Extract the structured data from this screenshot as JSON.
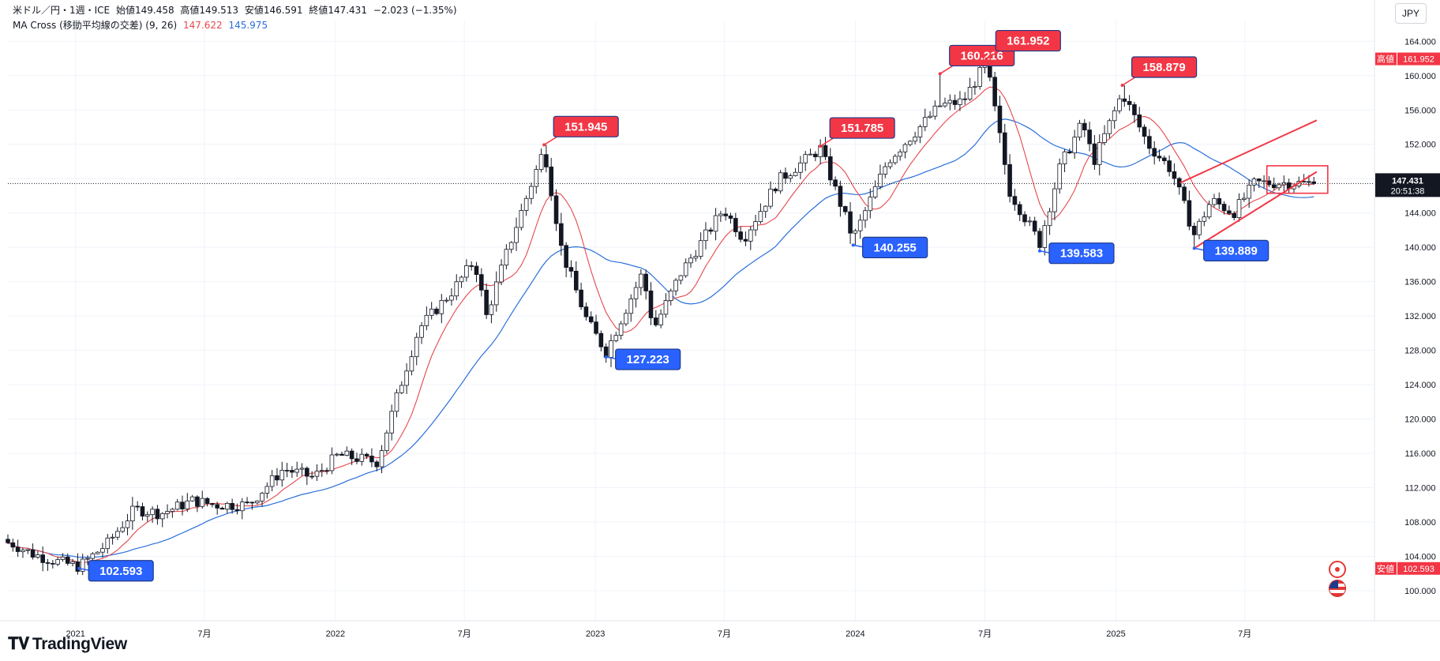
{
  "legend": {
    "title": "米ドル／円・1週・ICE",
    "open": "始値149.458",
    "high": "高値149.513",
    "low": "安値146.591",
    "close": "終値147.431",
    "change": "−2.023 (−1.35%)",
    "ma_title": "MA Cross (移動平均線の交差) (9, 26)",
    "ma_fast": "147.622",
    "ma_slow": "145.975"
  },
  "currency_button": "JPY",
  "brand": "TradingView",
  "colors": {
    "up": "#ffffff",
    "down": "#131722",
    "ma_fast": "#e5484d",
    "ma_slow": "#2a6fdb",
    "high_label": "#f23645",
    "low_label": "#2962ff",
    "trendline": "#f23645"
  },
  "chart_data": {
    "type": "candlestick",
    "title": "米ドル／円・1週・ICE",
    "ylim": [
      96.5,
      165.5
    ],
    "y_ticks": [
      "164.000",
      "160.000",
      "156.000",
      "152.000",
      "148.000",
      "144.000",
      "140.000",
      "136.000",
      "132.000",
      "128.000",
      "124.000",
      "120.000",
      "116.000",
      "112.000",
      "108.000",
      "104.000",
      "100.000"
    ],
    "x_ticks": [
      {
        "label": "2021",
        "date": "2021-01-01"
      },
      {
        "label": "7月",
        "date": "2021-07-01"
      },
      {
        "label": "2022",
        "date": "2022-01-01"
      },
      {
        "label": "7月",
        "date": "2022-07-01"
      },
      {
        "label": "2023",
        "date": "2023-01-01"
      },
      {
        "label": "7月",
        "date": "2023-07-01"
      },
      {
        "label": "2024",
        "date": "2024-01-01"
      },
      {
        "label": "7月",
        "date": "2024-07-01"
      },
      {
        "label": "2025",
        "date": "2025-01-01"
      },
      {
        "label": "7月",
        "date": "2025-07-01"
      }
    ],
    "x_range": [
      "2020-09-28",
      "2025-12-29"
    ],
    "close_path": [
      {
        "date": "2020-10-01",
        "close": 105.6
      },
      {
        "date": "2020-11-01",
        "close": 104.3
      },
      {
        "date": "2020-12-01",
        "close": 103.5
      },
      {
        "date": "2021-01-06",
        "close": 102.8
      },
      {
        "date": "2021-02-15",
        "close": 105.5
      },
      {
        "date": "2021-03-25",
        "close": 109.5
      },
      {
        "date": "2021-05-01",
        "close": 109.0
      },
      {
        "date": "2021-06-15",
        "close": 110.5
      },
      {
        "date": "2021-07-15",
        "close": 110.0
      },
      {
        "date": "2021-09-01",
        "close": 110.0
      },
      {
        "date": "2021-10-20",
        "close": 114.2
      },
      {
        "date": "2021-12-01",
        "close": 113.2
      },
      {
        "date": "2022-01-05",
        "close": 115.8
      },
      {
        "date": "2022-03-01",
        "close": 115.0
      },
      {
        "date": "2022-03-28",
        "close": 122.5
      },
      {
        "date": "2022-04-28",
        "close": 130.5
      },
      {
        "date": "2022-06-15",
        "close": 135.0
      },
      {
        "date": "2022-07-15",
        "close": 138.5
      },
      {
        "date": "2022-08-01",
        "close": 132.0
      },
      {
        "date": "2022-09-01",
        "close": 140.0
      },
      {
        "date": "2022-10-21",
        "close": 151.5
      },
      {
        "date": "2022-11-15",
        "close": 139.5
      },
      {
        "date": "2022-12-20",
        "close": 131.5
      },
      {
        "date": "2023-01-16",
        "close": 127.8
      },
      {
        "date": "2023-03-08",
        "close": 137.0
      },
      {
        "date": "2023-03-24",
        "close": 130.5
      },
      {
        "date": "2023-05-01",
        "close": 137.0
      },
      {
        "date": "2023-06-30",
        "close": 144.5
      },
      {
        "date": "2023-07-28",
        "close": 141.0
      },
      {
        "date": "2023-09-15",
        "close": 147.8
      },
      {
        "date": "2023-11-13",
        "close": 151.5
      },
      {
        "date": "2023-12-29",
        "close": 141.0
      },
      {
        "date": "2024-02-15",
        "close": 150.0
      },
      {
        "date": "2024-04-29",
        "close": 156.5
      },
      {
        "date": "2024-05-31",
        "close": 157.0
      },
      {
        "date": "2024-07-03",
        "close": 161.5
      },
      {
        "date": "2024-08-05",
        "close": 146.5
      },
      {
        "date": "2024-09-16",
        "close": 140.5
      },
      {
        "date": "2024-10-15",
        "close": 149.5
      },
      {
        "date": "2024-11-15",
        "close": 154.5
      },
      {
        "date": "2024-12-01",
        "close": 150.0
      },
      {
        "date": "2025-01-10",
        "close": 158.0
      },
      {
        "date": "2025-02-15",
        "close": 152.0
      },
      {
        "date": "2025-03-20",
        "close": 149.0
      },
      {
        "date": "2025-04-21",
        "close": 141.5
      },
      {
        "date": "2025-05-15",
        "close": 145.5
      },
      {
        "date": "2025-06-15",
        "close": 144.0
      },
      {
        "date": "2025-07-15",
        "close": 147.5
      },
      {
        "date": "2025-09-01",
        "close": 147.5
      },
      {
        "date": "2025-10-10",
        "close": 147.431
      }
    ],
    "series": [
      {
        "name": "MA 9",
        "color": "#e5484d",
        "last": 147.622
      },
      {
        "name": "MA 26",
        "color": "#2a6fdb",
        "last": 145.975
      }
    ],
    "annotations": [
      {
        "text": "102.593",
        "kind": "low",
        "date": "2021-01-06",
        "value": 102.593
      },
      {
        "text": "151.945",
        "kind": "high",
        "date": "2022-10-21",
        "value": 151.945
      },
      {
        "text": "127.223",
        "kind": "low",
        "date": "2023-01-16",
        "value": 127.223
      },
      {
        "text": "151.785",
        "kind": "high",
        "date": "2023-11-13",
        "value": 151.785
      },
      {
        "text": "140.255",
        "kind": "low",
        "date": "2023-12-29",
        "value": 140.255
      },
      {
        "text": "160.216",
        "kind": "high",
        "date": "2024-04-29",
        "value": 160.216
      },
      {
        "text": "161.952",
        "kind": "high",
        "date": "2024-07-03",
        "value": 161.952
      },
      {
        "text": "139.583",
        "kind": "low",
        "date": "2024-09-16",
        "value": 139.583
      },
      {
        "text": "158.879",
        "kind": "high",
        "date": "2025-01-10",
        "value": 158.879
      },
      {
        "text": "139.889",
        "kind": "low",
        "date": "2025-04-21",
        "value": 139.889
      }
    ],
    "axis_labels": [
      {
        "text": "高値",
        "value": "161.952",
        "color": "#f23645"
      },
      {
        "text": "147.431",
        "sub": "20:51:38",
        "color": "#131722"
      },
      {
        "text": "安値",
        "value": "102.593",
        "color": "#f23645"
      }
    ],
    "trendlines": [
      {
        "from": {
          "date": "2025-04-21",
          "value": 139.889
        },
        "to": {
          "date": "2025-10-10",
          "value": 148.8
        }
      },
      {
        "from": {
          "date": "2025-04-01",
          "value": 147.5
        },
        "to": {
          "date": "2025-10-10",
          "value": 154.8
        }
      }
    ],
    "range_box": {
      "from": {
        "date": "2025-08-01",
        "value": 149.5
      },
      "to": {
        "date": "2025-10-10",
        "value": 146.3
      }
    },
    "last_price": 147.431
  }
}
